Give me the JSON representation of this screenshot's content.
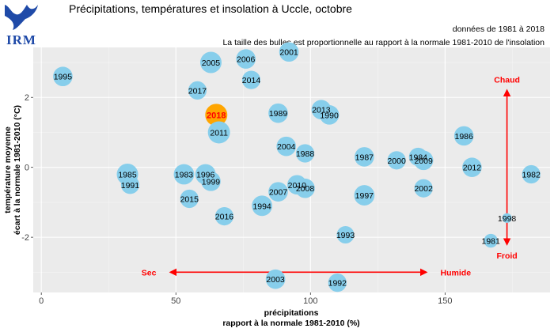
{
  "logo": {
    "text": "IRM"
  },
  "header": {
    "title": "Précipitations, températures et insolation à Uccle, octobre",
    "subtitle1": "données de 1981 à 2018",
    "subtitle2": "La taille des bulles est proportionnelle au rapport à la normale 1981-2010 de l'insolation"
  },
  "chart_data": {
    "type": "scatter",
    "xlabel_line1": "précipitations",
    "xlabel_line2": "rapport à la normale 1981-2010 (%)",
    "ylabel_line1": "température moyenne",
    "ylabel_line2": "écart à la normale 1981-2010 (°C)",
    "xlim": [
      -3,
      189
    ],
    "ylim": [
      -3.58,
      3.43
    ],
    "xticks": [
      0,
      50,
      100,
      150
    ],
    "yticks": [
      -2,
      0,
      2
    ],
    "grid": true,
    "background_color": "#ebebeb",
    "bubble_color": "#87ceeb",
    "highlight_color": "#ffa500",
    "highlight_year": "2018",
    "points": [
      {
        "label": "1995",
        "x": 8,
        "y": 2.6,
        "size": 1.0
      },
      {
        "label": "2001",
        "x": 92,
        "y": 3.3,
        "size": 1.0
      },
      {
        "label": "2006",
        "x": 76,
        "y": 3.1,
        "size": 1.0
      },
      {
        "label": "2005",
        "x": 63,
        "y": 3.0,
        "size": 1.2
      },
      {
        "label": "2014",
        "x": 78,
        "y": 2.5,
        "size": 0.9
      },
      {
        "label": "2017",
        "x": 58,
        "y": 2.2,
        "size": 0.9
      },
      {
        "label": "2018",
        "x": 65,
        "y": 1.5,
        "size": 1.3
      },
      {
        "label": "1989",
        "x": 88,
        "y": 1.55,
        "size": 1.0
      },
      {
        "label": "2013",
        "x": 104,
        "y": 1.65,
        "size": 1.0
      },
      {
        "label": "1990",
        "x": 107,
        "y": 1.5,
        "size": 1.0
      },
      {
        "label": "2011",
        "x": 66,
        "y": 1.0,
        "size": 1.3
      },
      {
        "label": "1986",
        "x": 157,
        "y": 0.9,
        "size": 1.0
      },
      {
        "label": "2004",
        "x": 91,
        "y": 0.6,
        "size": 1.0
      },
      {
        "label": "1988",
        "x": 98,
        "y": 0.4,
        "size": 0.9
      },
      {
        "label": "1987",
        "x": 120,
        "y": 0.3,
        "size": 1.0
      },
      {
        "label": "2000",
        "x": 132,
        "y": 0.2,
        "size": 0.9
      },
      {
        "label": "1984",
        "x": 140,
        "y": 0.3,
        "size": 0.9
      },
      {
        "label": "2009",
        "x": 142,
        "y": 0.2,
        "size": 1.0
      },
      {
        "label": "2012",
        "x": 160,
        "y": 0.0,
        "size": 1.0
      },
      {
        "label": "1982",
        "x": 182,
        "y": -0.2,
        "size": 0.9
      },
      {
        "label": "1985",
        "x": 32,
        "y": -0.2,
        "size": 1.2
      },
      {
        "label": "1983",
        "x": 53,
        "y": -0.2,
        "size": 1.1
      },
      {
        "label": "1996",
        "x": 61,
        "y": -0.2,
        "size": 1.1
      },
      {
        "label": "1991",
        "x": 33,
        "y": -0.5,
        "size": 0.9
      },
      {
        "label": "1999",
        "x": 63,
        "y": -0.4,
        "size": 1.0
      },
      {
        "label": "2010",
        "x": 95,
        "y": -0.5,
        "size": 1.0
      },
      {
        "label": "2008",
        "x": 98,
        "y": -0.6,
        "size": 1.0
      },
      {
        "label": "2007",
        "x": 88,
        "y": -0.7,
        "size": 1.0
      },
      {
        "label": "2002",
        "x": 142,
        "y": -0.6,
        "size": 0.9
      },
      {
        "label": "1997",
        "x": 120,
        "y": -0.8,
        "size": 1.1
      },
      {
        "label": "2015",
        "x": 55,
        "y": -0.9,
        "size": 0.9
      },
      {
        "label": "1994",
        "x": 82,
        "y": -1.1,
        "size": 1.1
      },
      {
        "label": "2016",
        "x": 68,
        "y": -1.4,
        "size": 0.9
      },
      {
        "label": "1998",
        "x": 173,
        "y": -1.45,
        "size": 0.25
      },
      {
        "label": "1993",
        "x": 113,
        "y": -1.93,
        "size": 0.8
      },
      {
        "label": "1981",
        "x": 167,
        "y": -2.1,
        "size": 0.5
      },
      {
        "label": "2003",
        "x": 87,
        "y": -3.2,
        "size": 1.0
      },
      {
        "label": "1992",
        "x": 110,
        "y": -3.3,
        "size": 0.9
      }
    ],
    "annotations": {
      "chaud": "Chaud",
      "froid": "Froid",
      "sec": "Sec",
      "humide": "Humide"
    },
    "arrows": {
      "vertical": {
        "x": 173,
        "y_from": -2.2,
        "y_to": 2.2
      },
      "horizontal": {
        "y": -3.0,
        "x_from": 48,
        "x_to": 143
      }
    }
  }
}
